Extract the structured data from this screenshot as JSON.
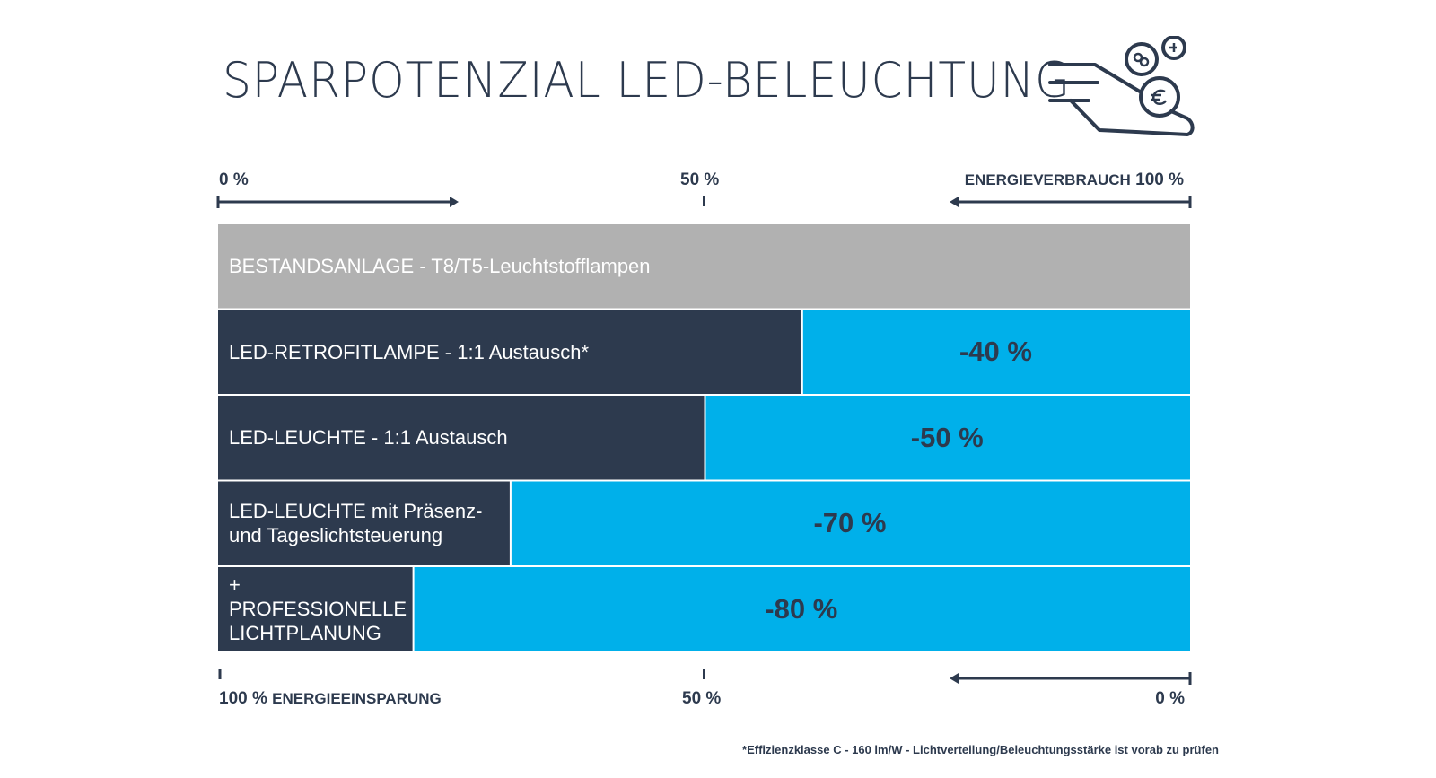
{
  "title": "SPARPOTENZIAL LED-BELEUCHTUNG",
  "colors": {
    "navy": "#2d3a4e",
    "gray": "#b1b1b1",
    "cyan": "#00b0ea",
    "text_light": "#ffffff"
  },
  "icon": "hand-with-coins-icon",
  "top_axis": {
    "left": "0 %",
    "middle": "50 %",
    "right_prefix": "ENERGIEVERBRAUCH",
    "right": "100 %"
  },
  "bottom_axis": {
    "left": "100 %",
    "left_suffix": "ENERGIEEINSPARUNG",
    "middle": "50 %",
    "right": "0 %"
  },
  "footnote": "*Effizienzklasse C - 160 lm/W - Lichtverteilung/Beleuchtungsstärke ist vorab zu prüfen",
  "chart_data": {
    "type": "bar",
    "orientation": "horizontal-stacked",
    "xlim": [
      0,
      100
    ],
    "x_unit": "%",
    "series": [
      {
        "name": "ENERGIEVERBRAUCH",
        "values": [
          100,
          60,
          50,
          30,
          20
        ]
      },
      {
        "name": "ENERGIEEINSPARUNG",
        "values": [
          0,
          40,
          50,
          70,
          80
        ]
      }
    ],
    "categories": [
      "BESTANDSANLAGE - T8/T5-Leuchtstofflampen",
      "LED-RETROFITLAMPE - 1:1 Austausch*",
      "LED-LEUCHTE - 1:1 Austausch",
      "LED-LEUCHTE mit Präsenz-\nund Tageslichtsteuerung",
      "+\nPROFESSIONELLE\nLICHTPLANUNG"
    ],
    "data_labels": [
      "",
      "-40 %",
      "-50 %",
      "-70 %",
      "-80 %"
    ]
  }
}
